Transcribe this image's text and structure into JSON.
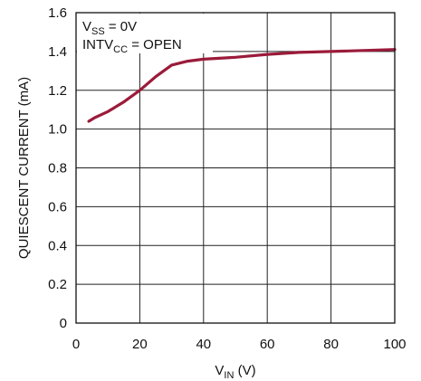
{
  "chart_data": {
    "type": "line",
    "title": "",
    "xlabel": {
      "base": "V",
      "sub": "IN",
      "suffix": " (V)"
    },
    "ylabel": "QUIESCENT CURRENT (mA)",
    "xlim": [
      0,
      100
    ],
    "ylim": [
      0,
      1.6
    ],
    "x_ticks": [
      0,
      20,
      40,
      60,
      80,
      100
    ],
    "y_ticks": [
      0,
      0.2,
      0.4,
      0.6,
      0.8,
      1.0,
      1.2,
      1.4,
      1.6
    ],
    "x_tick_labels": [
      "0",
      "20",
      "40",
      "60",
      "80",
      "100"
    ],
    "y_tick_labels": [
      "0",
      "0.2",
      "0.4",
      "0.6",
      "0.8",
      "1.0",
      "1.2",
      "1.4",
      "1.6"
    ],
    "grid": true,
    "line_color": "#9b1b3a",
    "annotations": [
      {
        "base": "V",
        "sub": "SS",
        "suffix": " = 0V"
      },
      {
        "base": "INTV",
        "sub": "CC",
        "suffix": " = OPEN"
      }
    ],
    "series": [
      {
        "x": [
          4,
          6,
          10,
          15,
          20,
          25,
          30,
          35,
          40,
          50,
          60,
          70,
          80,
          90,
          100
        ],
        "y": [
          1.04,
          1.06,
          1.09,
          1.14,
          1.2,
          1.27,
          1.33,
          1.35,
          1.36,
          1.37,
          1.385,
          1.395,
          1.4,
          1.405,
          1.41
        ]
      }
    ]
  }
}
